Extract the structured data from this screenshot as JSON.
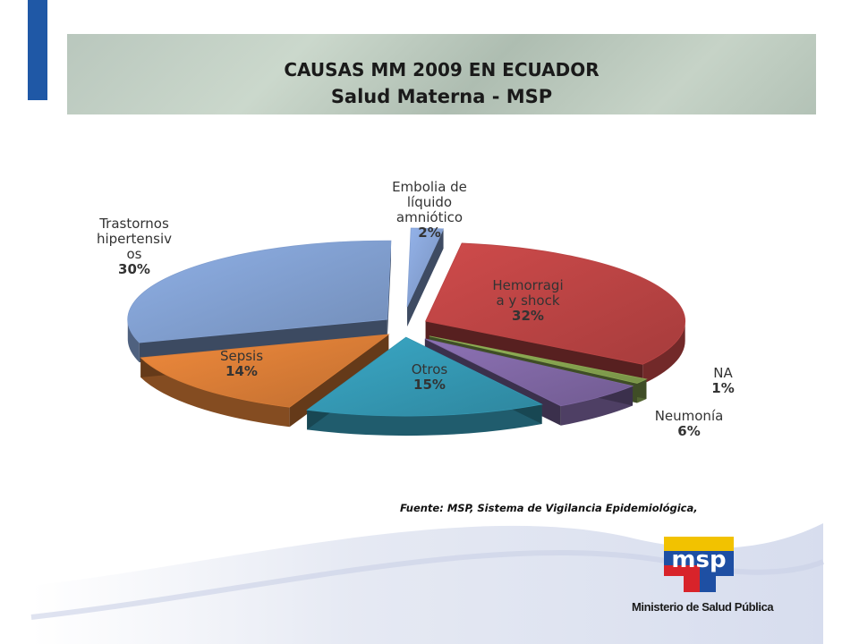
{
  "slide": {
    "title_line1": "CAUSAS MM 2009 EN ECUADOR",
    "title_line2": "Salud  Materna - MSP",
    "source": "Fuente: MSP, Sistema de Vigilancia Epidemiológica,"
  },
  "logo": {
    "mark_text": "msp",
    "name": "Ministerio de Salud Pública"
  },
  "colors": {
    "accent_bar": "#1f58a6",
    "trastornos": "#8fb0e6",
    "embolia": "#94b3ea",
    "hemorragia": "#cf4b4b",
    "na": "#97b85a",
    "neumonia": "#8d72b5",
    "otros": "#3aa8c6",
    "sepsis": "#f08a3c"
  },
  "chart_data": {
    "type": "pie",
    "title": "CAUSAS MM 2009 EN ECUADOR",
    "legend": "none",
    "slices": [
      {
        "label_lines": [
          "Hemorragi",
          "a y shock",
          "32%"
        ],
        "category": "Hemorragia y shock",
        "value": 32,
        "color": "#cf4b4b"
      },
      {
        "label_lines": [
          "NA",
          "1%"
        ],
        "category": "NA",
        "value": 1,
        "color": "#97b85a"
      },
      {
        "label_lines": [
          "Neumonía",
          "6%"
        ],
        "category": "Neumonía",
        "value": 6,
        "color": "#8d72b5"
      },
      {
        "label_lines": [
          "Otros",
          "15%"
        ],
        "category": "Otros",
        "value": 15,
        "color": "#3aa8c6"
      },
      {
        "label_lines": [
          "Sepsis",
          "14%"
        ],
        "category": "Sepsis",
        "value": 14,
        "color": "#f08a3c"
      },
      {
        "label_lines": [
          "Trastornos",
          "hipertensiv",
          "os",
          "30%"
        ],
        "category": "Trastornos hipertensivos",
        "value": 30,
        "color": "#8fb0e6"
      },
      {
        "label_lines": [
          "Embolia de",
          "líquido",
          "amniótico",
          "2%"
        ],
        "category": "Embolia de líquido amniótico",
        "value": 2,
        "color": "#94b3ea"
      }
    ]
  }
}
